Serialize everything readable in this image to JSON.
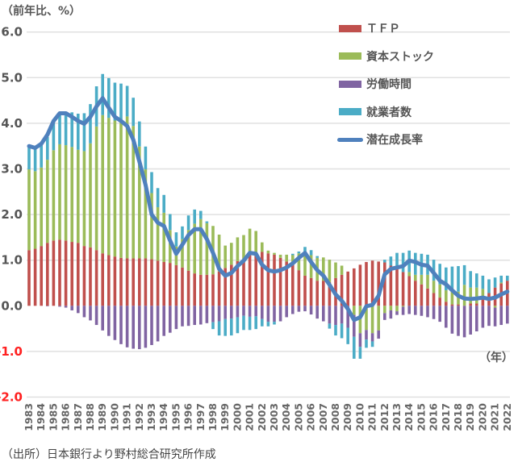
{
  "chart_data": {
    "type": "bar",
    "subtype": "stacked bar with line",
    "unit_label": "（前年比、%）",
    "xlabel": "（年）",
    "source": "（出所）日本銀行より野村総合研究所作成",
    "ylim": [
      -2.0,
      6.0
    ],
    "yticks": [
      "6.0",
      "5.0",
      "4.0",
      "3.0",
      "2.0",
      "1.0",
      "0.0",
      "-1.0",
      "-2.0"
    ],
    "ytick_values": [
      6,
      5,
      4,
      3,
      2,
      1,
      0,
      -1,
      -2
    ],
    "negative_tick_color": "#ff2020",
    "grid": true,
    "legend_position": "top-right",
    "year_labels": [
      "1983",
      "1984",
      "1985",
      "1986",
      "1987",
      "1988",
      "1989",
      "1990",
      "1991",
      "1992",
      "1993",
      "1994",
      "1995",
      "1996",
      "1997",
      "1998",
      "1999",
      "2000",
      "2001",
      "2002",
      "2003",
      "2004",
      "2005",
      "2006",
      "2007",
      "2008",
      "2009",
      "2010",
      "2011",
      "2012",
      "2013",
      "2014",
      "2015",
      "2016",
      "2017",
      "2018",
      "2019",
      "2020",
      "2021",
      "2022"
    ],
    "period_step_years": 0.5,
    "series": [
      {
        "name": "ＴＦＰ",
        "kind": "bar",
        "color": "#c0504d",
        "values": [
          1.22,
          1.25,
          1.31,
          1.38,
          1.43,
          1.45,
          1.43,
          1.4,
          1.38,
          1.31,
          1.28,
          1.22,
          1.15,
          1.11,
          1.08,
          1.05,
          1.04,
          1.04,
          1.04,
          1.04,
          1.02,
          0.99,
          0.96,
          0.94,
          0.89,
          0.84,
          0.77,
          0.71,
          0.68,
          0.68,
          0.69,
          0.75,
          0.83,
          0.9,
          0.98,
          1.02,
          1.11,
          1.16,
          1.18,
          1.15,
          1.12,
          1.05,
          0.97,
          0.9,
          0.78,
          0.66,
          0.61,
          0.55,
          0.55,
          0.52,
          0.61,
          0.68,
          0.75,
          0.82,
          0.9,
          0.96,
          0.99,
          0.97,
          0.95,
          0.88,
          0.88,
          0.74,
          0.65,
          0.55,
          0.47,
          0.38,
          0.28,
          0.18,
          0.09,
          0.03,
          0.03,
          0.0,
          0.05,
          0.05,
          0.2,
          0.28,
          0.4,
          0.49,
          0.55
        ]
      },
      {
        "name": "資本ストック",
        "kind": "bar",
        "color": "#9bbb59",
        "values": [
          1.77,
          1.7,
          1.72,
          1.82,
          1.98,
          2.09,
          2.09,
          2.08,
          2.04,
          2.08,
          2.28,
          2.71,
          3.03,
          3.01,
          2.98,
          2.97,
          3.11,
          2.9,
          2.45,
          1.95,
          1.45,
          1.17,
          1.08,
          0.72,
          0.41,
          0.62,
          0.89,
          1.09,
          1.22,
          1.13,
          1.06,
          0.81,
          0.49,
          0.48,
          0.52,
          0.53,
          0.58,
          0.48,
          0.21,
          0.06,
          0.04,
          0.07,
          0.15,
          0.21,
          0.37,
          0.52,
          0.5,
          0.5,
          0.51,
          0.49,
          0.34,
          0.2,
          0.0,
          -0.2,
          -0.6,
          -0.53,
          -0.6,
          -0.54,
          -0.16,
          -0.1,
          -0.12,
          -0.02,
          0.09,
          0.13,
          0.21,
          0.3,
          0.27,
          0.29,
          0.25,
          0.28,
          0.28,
          0.46,
          0.35,
          0.35,
          0.17,
          0.0,
          -0.04,
          0.02,
          0.0
        ]
      },
      {
        "name": "労働時間",
        "kind": "bar",
        "color": "#8064a2",
        "values": [
          0,
          0,
          0,
          -0.01,
          0,
          -0.02,
          -0.04,
          -0.1,
          -0.16,
          -0.25,
          -0.32,
          -0.42,
          -0.54,
          -0.66,
          -0.75,
          -0.84,
          -0.91,
          -0.94,
          -0.95,
          -0.92,
          -0.86,
          -0.78,
          -0.66,
          -0.59,
          -0.51,
          -0.45,
          -0.44,
          -0.42,
          -0.41,
          -0.38,
          -0.36,
          -0.34,
          -0.29,
          -0.28,
          -0.25,
          -0.22,
          -0.24,
          -0.23,
          -0.29,
          -0.35,
          -0.35,
          -0.34,
          -0.25,
          -0.18,
          -0.13,
          -0.12,
          -0.19,
          -0.28,
          -0.34,
          -0.39,
          -0.42,
          -0.39,
          -0.48,
          -0.48,
          -0.3,
          -0.21,
          -0.18,
          -0.18,
          -0.15,
          -0.18,
          -0.08,
          -0.18,
          -0.18,
          -0.2,
          -0.22,
          -0.25,
          -0.29,
          -0.35,
          -0.48,
          -0.61,
          -0.66,
          -0.69,
          -0.63,
          -0.56,
          -0.48,
          -0.44,
          -0.41,
          -0.42,
          -0.39
        ]
      },
      {
        "name": "就業者数",
        "kind": "bar",
        "color": "#4bacc6",
        "values": [
          0.53,
          0.5,
          0.49,
          0.5,
          0.61,
          0.68,
          0.67,
          0.76,
          0.79,
          0.83,
          0.86,
          0.88,
          0.9,
          0.87,
          0.83,
          0.85,
          0.67,
          0.62,
          0.55,
          0.5,
          0.46,
          0.42,
          0.39,
          0.35,
          0.31,
          0.28,
          0.32,
          0.31,
          0.18,
          0.04,
          -0.15,
          -0.31,
          -0.37,
          -0.37,
          -0.35,
          -0.31,
          -0.29,
          -0.28,
          -0.16,
          -0.1,
          -0.06,
          0,
          0,
          0.03,
          0.04,
          0.11,
          0.11,
          0.04,
          0,
          -0.11,
          -0.23,
          -0.32,
          -0.36,
          -0.48,
          -0.26,
          -0.18,
          -0.12,
          0,
          0.06,
          0.2,
          0.28,
          0.42,
          0.47,
          0.48,
          0.46,
          0.44,
          0.46,
          0.45,
          0.5,
          0.55,
          0.56,
          0.43,
          0.36,
          0.31,
          0.29,
          0.3,
          0.22,
          0.15,
          0.11
        ]
      },
      {
        "name": "潜在成長率",
        "kind": "line",
        "color": "#4f81bd",
        "values": [
          3.5,
          3.46,
          3.55,
          3.75,
          4.05,
          4.22,
          4.22,
          4.14,
          4.05,
          3.99,
          4.14,
          4.37,
          4.55,
          4.34,
          4.14,
          4.05,
          3.94,
          3.64,
          3.16,
          2.65,
          2.0,
          1.82,
          1.75,
          1.43,
          1.14,
          1.34,
          1.55,
          1.68,
          1.68,
          1.46,
          1.16,
          0.81,
          0.66,
          0.72,
          0.87,
          0.99,
          1.16,
          1.14,
          0.9,
          0.78,
          0.75,
          0.78,
          0.84,
          0.93,
          1.05,
          1.16,
          0.96,
          0.78,
          0.66,
          0.46,
          0.25,
          0.11,
          -0.07,
          -0.31,
          -0.25,
          -0.01,
          0.02,
          0.22,
          0.69,
          0.81,
          0.84,
          0.87,
          0.99,
          0.96,
          0.9,
          0.88,
          0.72,
          0.55,
          0.47,
          0.34,
          0.22,
          0.16,
          0.15,
          0.16,
          0.18,
          0.15,
          0.18,
          0.25,
          0.31
        ]
      }
    ]
  }
}
